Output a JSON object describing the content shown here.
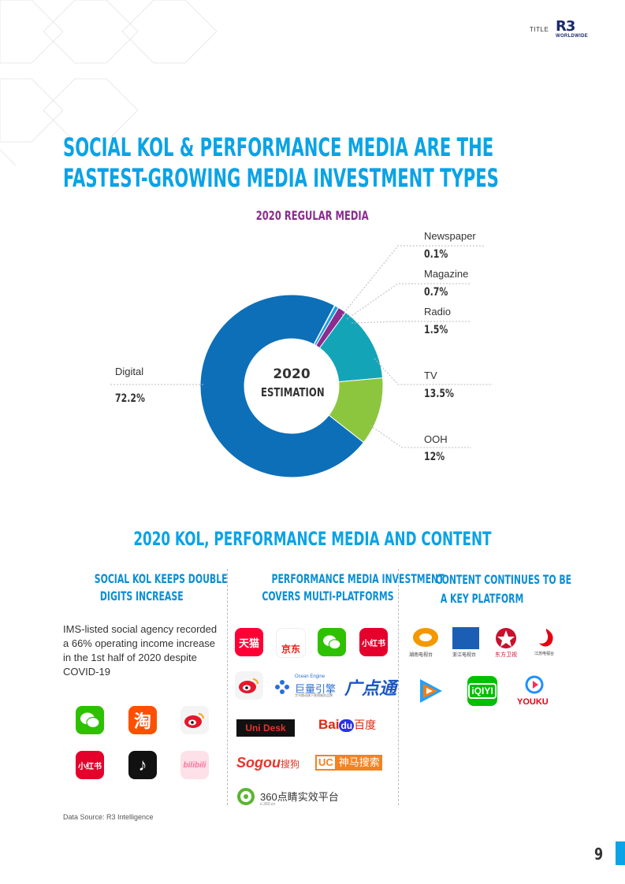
{
  "header": {
    "title": "TITLE",
    "logo_mark": "R3",
    "logo_sub": "WORLDWIDE"
  },
  "main_title": {
    "line1": "SOCIAL KOL & PERFORMANCE MEDIA ARE THE",
    "line2": "FASTEST-GROWING MEDIA INVESTMENT TYPES"
  },
  "chart_data": {
    "type": "pie",
    "title": "2020 REGULAR MEDIA",
    "center_label": [
      "2020",
      "ESTIMATION"
    ],
    "slices": [
      {
        "name": "Digital",
        "value": 72.2,
        "label": "72.2%",
        "color": "#0d6fb8"
      },
      {
        "name": "Newspaper",
        "value": 0.1,
        "label": "0.1%",
        "color": "#7dc8ef"
      },
      {
        "name": "Magazine",
        "value": 0.7,
        "label": "0.7%",
        "color": "#1aa0e0"
      },
      {
        "name": "Radio",
        "value": 1.5,
        "label": "1.5%",
        "color": "#8b2c8f"
      },
      {
        "name": "TV",
        "value": 13.5,
        "label": "13.5%",
        "color": "#14a4b8"
      },
      {
        "name": "OOH",
        "value": 12,
        "label": "12%",
        "color": "#8cc63f"
      }
    ]
  },
  "section": {
    "title": "2020 KOL, PERFORMANCE MEDIA AND CONTENT",
    "col1": {
      "head1": "SOCIAL KOL KEEPS DOUBLE",
      "head2": "DIGITS INCREASE",
      "text": "IMS-listed social agency recorded a 66% operating income increase in the 1st half of 2020 despite COVID-19"
    },
    "col2": {
      "head1": "PERFORMANCE MEDIA INVESTMENT",
      "head2": "COVERS MULTI-PLATFORMS"
    },
    "col3": {
      "head1": "CONTENT CONTINUES TO BE",
      "head2": "A KEY PLATFORM"
    }
  },
  "logos": {
    "col1": [
      {
        "name": "wechat-logo",
        "color": "#2dc100"
      },
      {
        "name": "taobao-logo",
        "text": "淘",
        "color": "#ff5000"
      },
      {
        "name": "weibo-logo",
        "color": "#f2f2f2"
      },
      {
        "name": "xiaohongshu-logo",
        "text": "小红书",
        "color": "#e4002b"
      },
      {
        "name": "douyin-logo",
        "text": "♪",
        "color": "#111111"
      },
      {
        "name": "bilibili-logo",
        "text": "bilibili",
        "color": "#fb7299"
      }
    ],
    "col2": {
      "tmall": "天猫",
      "jd": "京东",
      "xhs": "小红书",
      "ocean_small": "Ocean Engine",
      "ocean": "巨量引擎",
      "ocean_sub": "字节跳动旗下营销服务品牌",
      "guangdiantong": "广点通",
      "unidesk": "Uni Desk",
      "baidu": "Bai",
      "baidu_du": "du",
      "baidu_cn": "百度",
      "sogou": "Sogou",
      "sogou_cn": "搜狗",
      "uc": "UC",
      "uc_cn": "神马搜索",
      "e360": "360点睛实效平台",
      "e360_sub": "e.360.cn"
    },
    "col3": {
      "hunan": "湖南电视台",
      "zhejiang": "浙江电视台",
      "dongfang": "东方卫视",
      "jiangsu": "江苏电视台",
      "iqiyi": "iQIYI",
      "youku": "YOUKU"
    }
  },
  "footnote": "Data Source: R3 Intelligence",
  "page_number": "9"
}
